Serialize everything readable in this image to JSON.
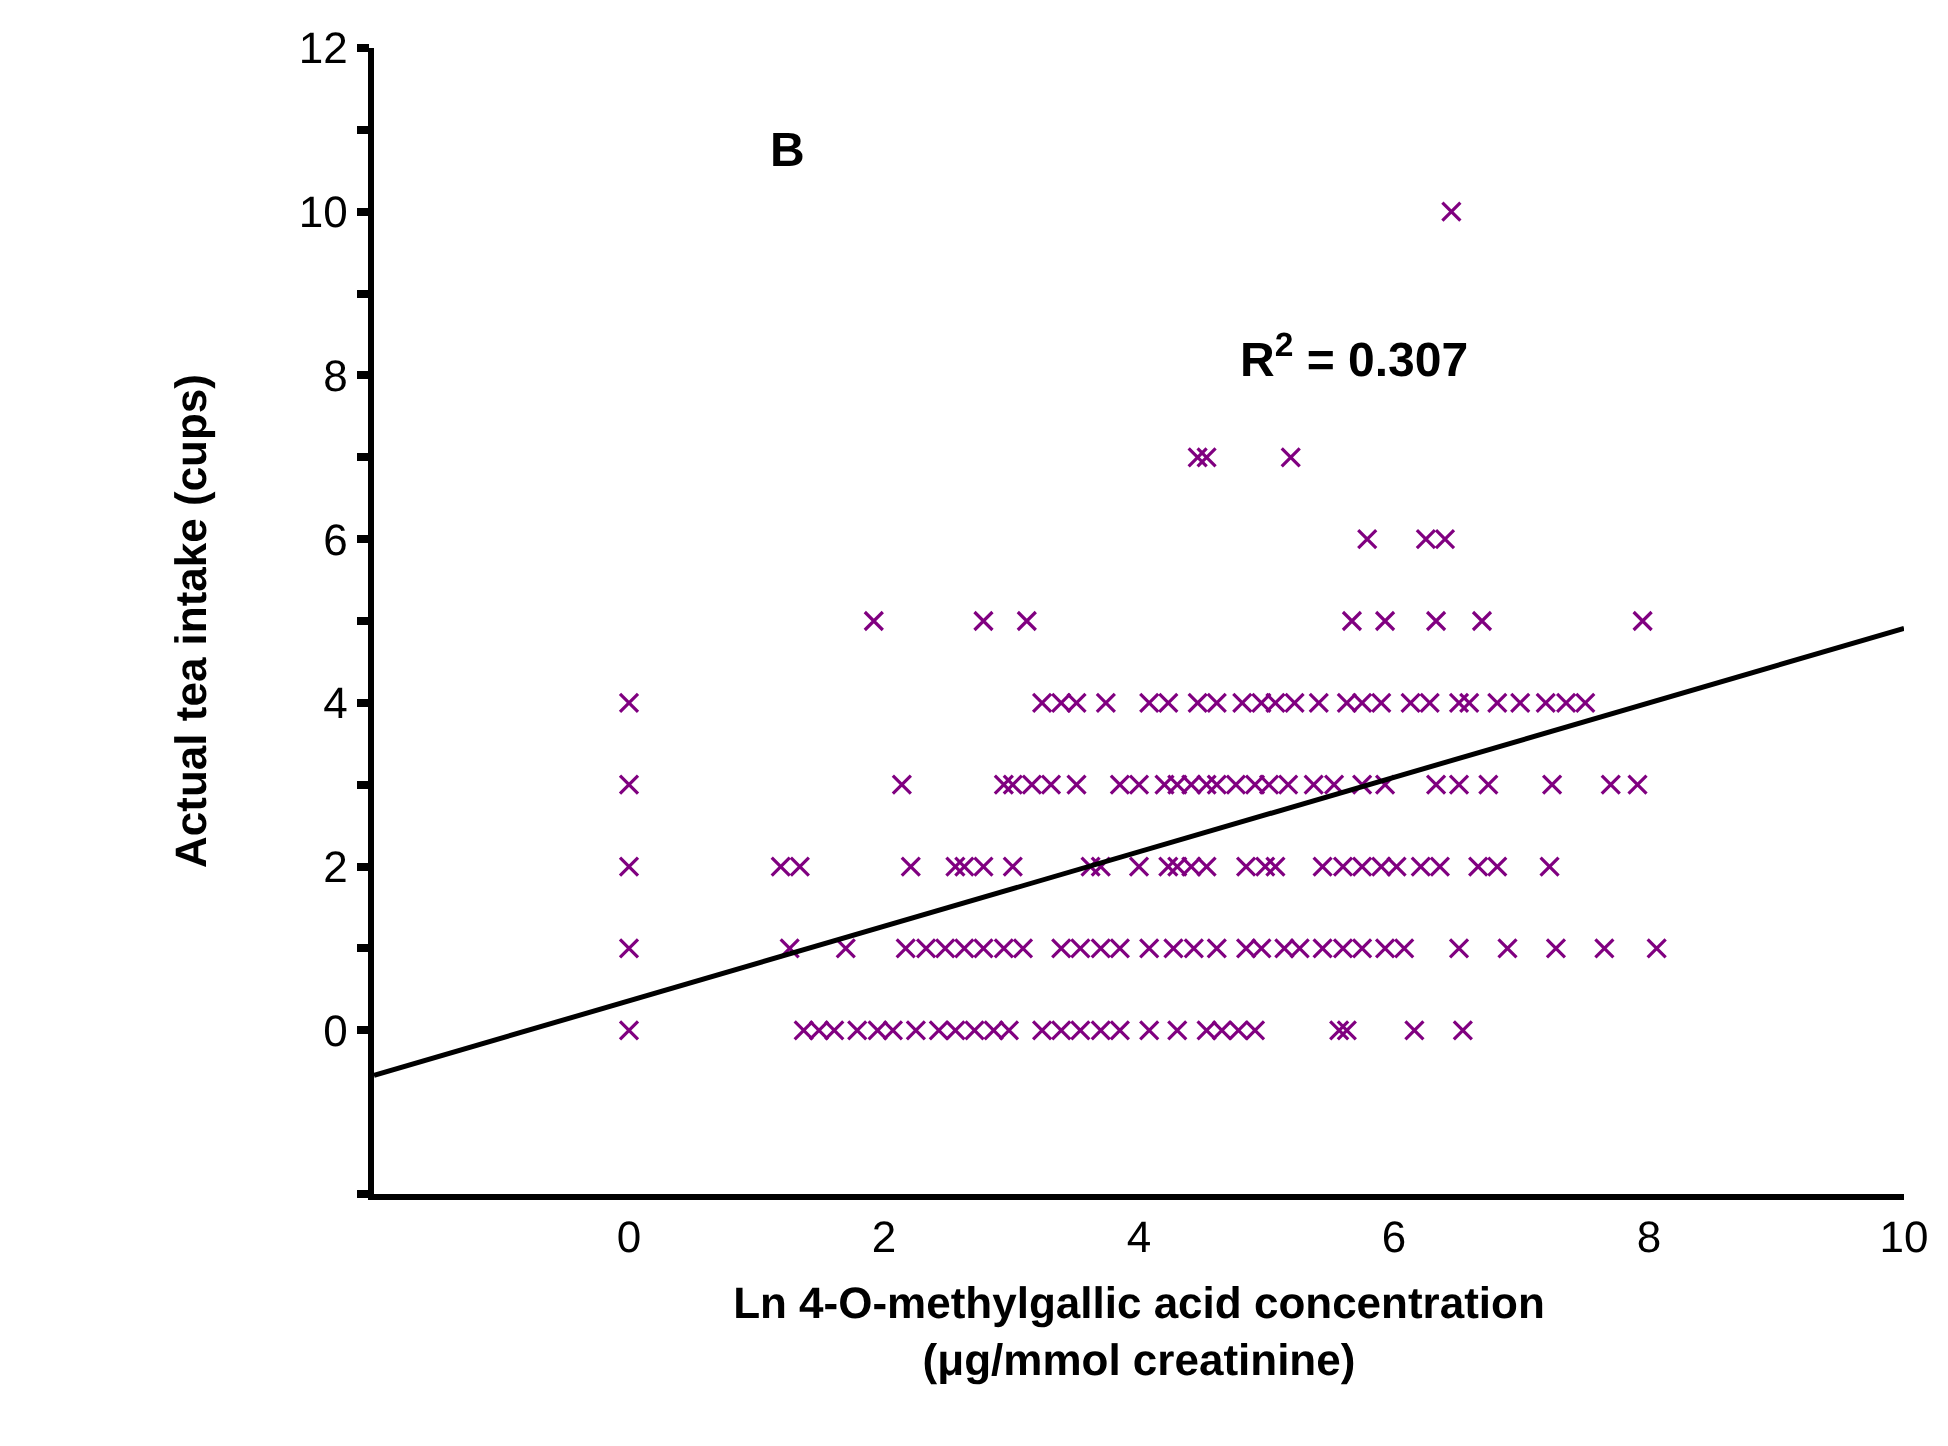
{
  "chart_data": {
    "type": "scatter",
    "xlabel": "Ln 4-O-methylgallic acid concentration\n(μg/mmol creatinine)",
    "ylabel": "Actual tea intake (cups)",
    "annotations": [
      "B",
      "R$^{2}$ = 0.307"
    ],
    "xlim": [
      -2,
      10
    ],
    "xticks": [
      0,
      2,
      4,
      6,
      8,
      10
    ],
    "ylim": [
      -2,
      12
    ],
    "yticks": [
      {
        "value": -2,
        "label": null
      },
      0,
      {
        "value": 1,
        "label": null
      },
      2,
      {
        "value": 3,
        "label": null
      },
      4,
      {
        "value": 5,
        "label": null
      },
      6,
      {
        "value": 7,
        "label": null
      },
      8,
      {
        "value": 9,
        "label": null
      },
      10,
      {
        "value": 11,
        "label": null
      },
      12
    ],
    "grid": false,
    "series": [
      {
        "marker": "cross",
        "color": "#800080",
        "x": [
          0,
          1.37,
          1.49,
          1.61,
          1.79,
          1.95,
          2.07,
          2.25,
          2.43,
          2.56,
          2.71,
          2.86,
          2.98,
          3.24,
          3.39,
          3.54,
          3.7,
          3.85,
          4.08,
          4.3,
          4.53,
          4.65,
          4.78,
          4.91,
          5.57,
          5.63,
          6.16,
          6.54,
          0,
          1.26,
          1.7,
          2.17,
          2.33,
          2.48,
          2.63,
          2.78,
          2.94,
          3.09,
          3.39,
          3.54,
          3.7,
          3.85,
          4.08,
          4.27,
          4.43,
          4.61,
          4.84,
          4.96,
          5.14,
          5.26,
          5.44,
          5.6,
          5.75,
          5.93,
          6.08,
          6.51,
          6.89,
          7.27,
          7.65,
          8.06,
          0,
          1.19,
          1.34,
          2.21,
          2.56,
          2.63,
          2.78,
          3.01,
          3.62,
          3.7,
          4,
          4.23,
          4.3,
          4.41,
          4.53,
          4.84,
          4.99,
          5.07,
          5.44,
          5.6,
          5.75,
          5.9,
          6.02,
          6.21,
          6.36,
          6.66,
          6.81,
          7.22,
          0,
          2.14,
          2.94,
          3.01,
          3.16,
          3.31,
          3.51,
          3.85,
          4,
          4.2,
          4.3,
          4.41,
          4.53,
          4.61,
          4.76,
          4.91,
          5.02,
          5.17,
          5.37,
          5.53,
          5.75,
          5.93,
          6.33,
          6.51,
          6.74,
          7.24,
          7.7,
          7.91,
          0,
          3.24,
          3.39,
          3.51,
          3.74,
          4.08,
          4.23,
          4.46,
          4.61,
          4.81,
          4.96,
          5.07,
          5.22,
          5.41,
          5.63,
          5.75,
          5.9,
          6.13,
          6.28,
          6.51,
          6.59,
          6.81,
          6.99,
          7.19,
          7.35,
          7.5,
          1.92,
          2.78,
          3.12,
          5.67,
          5.93,
          6.33,
          6.69,
          7.95,
          5.79,
          6.25,
          6.4,
          4.46,
          4.53,
          5.19,
          6.45
        ],
        "values": [
          0,
          0,
          0,
          0,
          0,
          0,
          0,
          0,
          0,
          0,
          0,
          0,
          0,
          0,
          0,
          0,
          0,
          0,
          0,
          0,
          0,
          0,
          0,
          0,
          0,
          0,
          0,
          0,
          1,
          1,
          1,
          1,
          1,
          1,
          1,
          1,
          1,
          1,
          1,
          1,
          1,
          1,
          1,
          1,
          1,
          1,
          1,
          1,
          1,
          1,
          1,
          1,
          1,
          1,
          1,
          1,
          1,
          1,
          1,
          1,
          2,
          2,
          2,
          2,
          2,
          2,
          2,
          2,
          2,
          2,
          2,
          2,
          2,
          2,
          2,
          2,
          2,
          2,
          2,
          2,
          2,
          2,
          2,
          2,
          2,
          2,
          2,
          2,
          3,
          3,
          3,
          3,
          3,
          3,
          3,
          3,
          3,
          3,
          3,
          3,
          3,
          3,
          3,
          3,
          3,
          3,
          3,
          3,
          3,
          3,
          3,
          3,
          3,
          3,
          3,
          3,
          4,
          4,
          4,
          4,
          4,
          4,
          4,
          4,
          4,
          4,
          4,
          4,
          4,
          4,
          4,
          4,
          4,
          4,
          4,
          4,
          4,
          4,
          4,
          4,
          4,
          4,
          5,
          5,
          5,
          5,
          5,
          5,
          5,
          5,
          6,
          6,
          6,
          7,
          7,
          7,
          10
        ]
      },
      {
        "type": "line",
        "color": "#000000",
        "x": [
          -2,
          10
        ],
        "values": [
          -0.55,
          4.91
        ]
      }
    ]
  }
}
